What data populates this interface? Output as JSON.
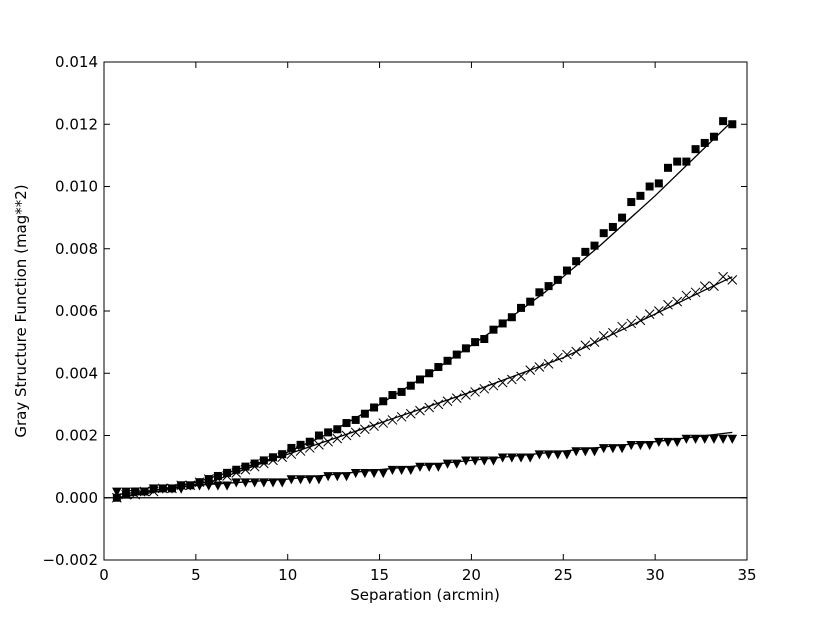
{
  "chart_data": {
    "type": "scatter",
    "xlabel": "Separation (arcmin)",
    "ylabel": "Gray Structure Function (mag**2)",
    "xlim": [
      0,
      35
    ],
    "ylim": [
      -0.002,
      0.014
    ],
    "xticks": [
      0,
      5,
      10,
      15,
      20,
      25,
      30,
      35
    ],
    "yticks": [
      -0.002,
      0.0,
      0.002,
      0.004,
      0.006,
      0.008,
      0.01,
      0.012,
      0.014
    ],
    "xtick_labels": [
      "0",
      "5",
      "10",
      "15",
      "20",
      "25",
      "30",
      "35"
    ],
    "ytick_labels": [
      "−0.002",
      "0.000",
      "0.002",
      "0.004",
      "0.006",
      "0.008",
      "0.010",
      "0.012",
      "0.014"
    ],
    "grid": false,
    "legend": "none",
    "reference_line_y": 0.0,
    "series": [
      {
        "marker": "square",
        "color": "#000000",
        "x": [
          0.7,
          1.2,
          1.7,
          2.2,
          2.7,
          3.2,
          3.7,
          4.2,
          4.7,
          5.2,
          5.7,
          6.2,
          6.7,
          7.2,
          7.7,
          8.2,
          8.7,
          9.2,
          9.7,
          10.2,
          10.7,
          11.2,
          11.7,
          12.2,
          12.7,
          13.2,
          13.7,
          14.2,
          14.7,
          15.2,
          15.7,
          16.2,
          16.7,
          17.2,
          17.7,
          18.2,
          18.7,
          19.2,
          19.7,
          20.2,
          20.7,
          21.2,
          21.7,
          22.2,
          22.7,
          23.2,
          23.7,
          24.2,
          24.7,
          25.2,
          25.7,
          26.2,
          26.7,
          27.2,
          27.7,
          28.2,
          28.7,
          29.2,
          29.7,
          30.2,
          30.7,
          31.2,
          31.7,
          32.2,
          32.7,
          33.2,
          33.7,
          34.2
        ],
        "y": [
          0.0,
          0.0001,
          0.0002,
          0.0002,
          0.0003,
          0.0003,
          0.0003,
          0.0004,
          0.0004,
          0.0005,
          0.0006,
          0.0007,
          0.0008,
          0.0009,
          0.001,
          0.0011,
          0.0012,
          0.0013,
          0.0014,
          0.0016,
          0.0017,
          0.0018,
          0.002,
          0.0021,
          0.0022,
          0.0024,
          0.0025,
          0.0027,
          0.0029,
          0.0031,
          0.0033,
          0.0034,
          0.0036,
          0.0038,
          0.004,
          0.0042,
          0.0044,
          0.0046,
          0.0048,
          0.005,
          0.0051,
          0.0054,
          0.0056,
          0.0058,
          0.0061,
          0.0063,
          0.0066,
          0.0068,
          0.007,
          0.0073,
          0.0076,
          0.0079,
          0.0081,
          0.0085,
          0.0087,
          0.009,
          0.0095,
          0.0097,
          0.01,
          0.0101,
          0.0106,
          0.0108,
          0.0108,
          0.0112,
          0.0114,
          0.0116,
          0.0121,
          0.012
        ],
        "fit": [
          [
            0.7,
            0.0
          ],
          [
            3,
            0.0002
          ],
          [
            6,
            0.00055
          ],
          [
            9,
            0.0012
          ],
          [
            12,
            0.002
          ],
          [
            15,
            0.003
          ],
          [
            18,
            0.0041
          ],
          [
            21,
            0.0053
          ],
          [
            24,
            0.0066
          ],
          [
            27,
            0.0081
          ],
          [
            30,
            0.0097
          ],
          [
            34.2,
            0.0121
          ]
        ]
      },
      {
        "marker": "x",
        "color": "#000000",
        "x": [
          0.7,
          1.2,
          1.7,
          2.2,
          2.7,
          3.2,
          3.7,
          4.2,
          4.7,
          5.2,
          5.7,
          6.2,
          6.7,
          7.2,
          7.7,
          8.2,
          8.7,
          9.2,
          9.7,
          10.2,
          10.7,
          11.2,
          11.7,
          12.2,
          12.7,
          13.2,
          13.7,
          14.2,
          14.7,
          15.2,
          15.7,
          16.2,
          16.7,
          17.2,
          17.7,
          18.2,
          18.7,
          19.2,
          19.7,
          20.2,
          20.7,
          21.2,
          21.7,
          22.2,
          22.7,
          23.2,
          23.7,
          24.2,
          24.7,
          25.2,
          25.7,
          26.2,
          26.7,
          27.2,
          27.7,
          28.2,
          28.7,
          29.2,
          29.7,
          30.2,
          30.7,
          31.2,
          31.7,
          32.2,
          32.7,
          33.2,
          33.7,
          34.2
        ],
        "y": [
          0.0,
          0.0001,
          0.0001,
          0.0002,
          0.0002,
          0.0003,
          0.0003,
          0.0004,
          0.0004,
          0.0005,
          0.0006,
          0.0006,
          0.0007,
          0.0008,
          0.0009,
          0.001,
          0.0011,
          0.0012,
          0.0013,
          0.0014,
          0.0015,
          0.0016,
          0.0017,
          0.0018,
          0.0019,
          0.002,
          0.0021,
          0.0022,
          0.0023,
          0.0024,
          0.0025,
          0.0026,
          0.0027,
          0.0028,
          0.0029,
          0.003,
          0.0031,
          0.0032,
          0.0033,
          0.0034,
          0.0035,
          0.0036,
          0.0037,
          0.0038,
          0.0039,
          0.0041,
          0.0042,
          0.0043,
          0.0045,
          0.0046,
          0.0047,
          0.0049,
          0.005,
          0.0052,
          0.0053,
          0.0055,
          0.0056,
          0.0057,
          0.0059,
          0.006,
          0.0062,
          0.0063,
          0.0065,
          0.0066,
          0.0068,
          0.0068,
          0.0071,
          0.007
        ],
        "fit": [
          [
            0.7,
            0.0
          ],
          [
            5,
            0.0005
          ],
          [
            10,
            0.0014
          ],
          [
            15,
            0.0024
          ],
          [
            20,
            0.0034
          ],
          [
            25,
            0.0045
          ],
          [
            30,
            0.0059
          ],
          [
            34.2,
            0.0071
          ]
        ]
      },
      {
        "marker": "triangle-down",
        "color": "#000000",
        "x": [
          0.7,
          1.2,
          1.7,
          2.2,
          2.7,
          3.2,
          3.7,
          4.2,
          4.7,
          5.2,
          5.7,
          6.2,
          6.7,
          7.2,
          7.7,
          8.2,
          8.7,
          9.2,
          9.7,
          10.2,
          10.7,
          11.2,
          11.7,
          12.2,
          12.7,
          13.2,
          13.7,
          14.2,
          14.7,
          15.2,
          15.7,
          16.2,
          16.7,
          17.2,
          17.7,
          18.2,
          18.7,
          19.2,
          19.7,
          20.2,
          20.7,
          21.2,
          21.7,
          22.2,
          22.7,
          23.2,
          23.7,
          24.2,
          24.7,
          25.2,
          25.7,
          26.2,
          26.7,
          27.2,
          27.7,
          28.2,
          28.7,
          29.2,
          29.7,
          30.2,
          30.7,
          31.2,
          31.7,
          32.2,
          32.7,
          33.2,
          33.7,
          34.2
        ],
        "y": [
          0.0002,
          0.0002,
          0.0002,
          0.0002,
          0.0003,
          0.0003,
          0.0003,
          0.0003,
          0.0004,
          0.0004,
          0.0004,
          0.0004,
          0.0004,
          0.0005,
          0.0005,
          0.0005,
          0.0005,
          0.0005,
          0.0005,
          0.0006,
          0.0006,
          0.0006,
          0.0006,
          0.0007,
          0.0007,
          0.0007,
          0.0008,
          0.0008,
          0.0008,
          0.0008,
          0.0009,
          0.0009,
          0.0009,
          0.001,
          0.001,
          0.001,
          0.0011,
          0.0011,
          0.0012,
          0.0012,
          0.0012,
          0.0012,
          0.0013,
          0.0013,
          0.0013,
          0.0013,
          0.0014,
          0.0014,
          0.0014,
          0.0014,
          0.0015,
          0.0015,
          0.0015,
          0.0016,
          0.0016,
          0.0016,
          0.0017,
          0.0017,
          0.0017,
          0.0018,
          0.0018,
          0.0018,
          0.0019,
          0.0019,
          0.0019,
          0.0019,
          0.0019,
          0.0019
        ],
        "fit": [
          [
            0.7,
            0.0001
          ],
          [
            5,
            0.0004
          ],
          [
            10,
            0.0006
          ],
          [
            15,
            0.0009
          ],
          [
            20,
            0.0012
          ],
          [
            25,
            0.0015
          ],
          [
            30,
            0.0018
          ],
          [
            34.2,
            0.0021
          ]
        ]
      }
    ]
  }
}
